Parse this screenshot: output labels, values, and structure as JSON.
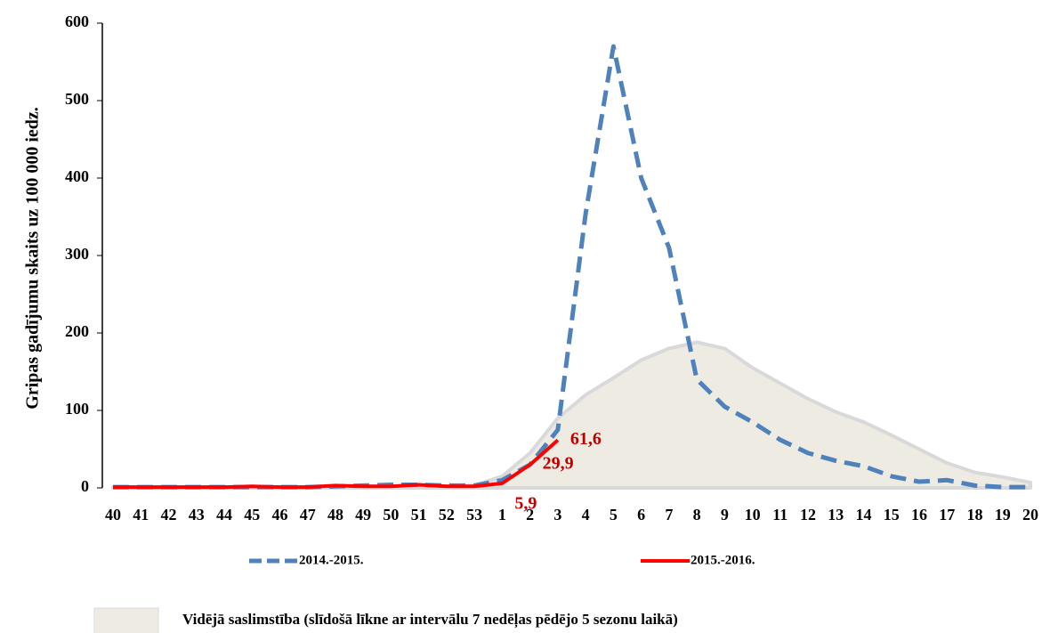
{
  "chart_data": {
    "type": "line",
    "y_label": "Gripas gadījumu skaits uz 100 000 iedz.",
    "categories": [
      "40",
      "41",
      "42",
      "43",
      "44",
      "45",
      "46",
      "47",
      "48",
      "49",
      "50",
      "51",
      "52",
      "53",
      "1",
      "2",
      "3",
      "4",
      "5",
      "6",
      "7",
      "8",
      "9",
      "10",
      "11",
      "12",
      "13",
      "14",
      "15",
      "16",
      "17",
      "18",
      "19",
      "20"
    ],
    "ylim": [
      0,
      600
    ],
    "yticks": [
      0,
      100,
      200,
      300,
      400,
      500,
      600
    ],
    "grid": false,
    "series": [
      {
        "name": "Vidējā saslimstība (slīdošā līkne ar intervālu 7 nedēļas pēdējo 5 sezonu laikā)",
        "type": "area",
        "color": "#eeebe3",
        "stroke": "#d9d9d9",
        "values": [
          1,
          1,
          1,
          1,
          1,
          1,
          1,
          1,
          1,
          2,
          2,
          2,
          2,
          3,
          15,
          45,
          90,
          120,
          142,
          165,
          180,
          188,
          180,
          155,
          135,
          115,
          98,
          85,
          68,
          50,
          32,
          20,
          14,
          7
        ]
      },
      {
        "name": "2014.-2015.",
        "type": "line",
        "dashed": true,
        "color": "#4f81bd",
        "values": [
          1,
          1,
          1,
          1,
          1,
          1,
          1,
          1,
          2,
          3,
          4,
          4,
          3,
          3,
          10,
          30,
          75,
          354,
          570,
          400,
          310,
          140,
          105,
          85,
          62,
          45,
          35,
          28,
          15,
          8,
          10,
          3,
          1,
          1
        ]
      },
      {
        "name": "2015.-2016.",
        "type": "line",
        "dashed": false,
        "color": "#ff0000",
        "values": [
          1,
          1,
          1,
          1,
          1,
          2,
          1,
          1,
          3,
          2,
          2,
          4,
          2,
          2,
          5.9,
          29.9,
          61.6,
          null,
          null,
          null,
          null,
          null,
          null,
          null,
          null,
          null,
          null,
          null,
          null,
          null,
          null,
          null,
          null,
          null
        ],
        "value_labels": [
          null,
          null,
          null,
          null,
          null,
          null,
          null,
          null,
          null,
          null,
          null,
          null,
          null,
          null,
          "5,9",
          "29,9",
          "61,6",
          null,
          null,
          null,
          null,
          null,
          null,
          null,
          null,
          null,
          null,
          null,
          null,
          null,
          null,
          null,
          null,
          null
        ],
        "label_color": "#c00000"
      }
    ]
  }
}
